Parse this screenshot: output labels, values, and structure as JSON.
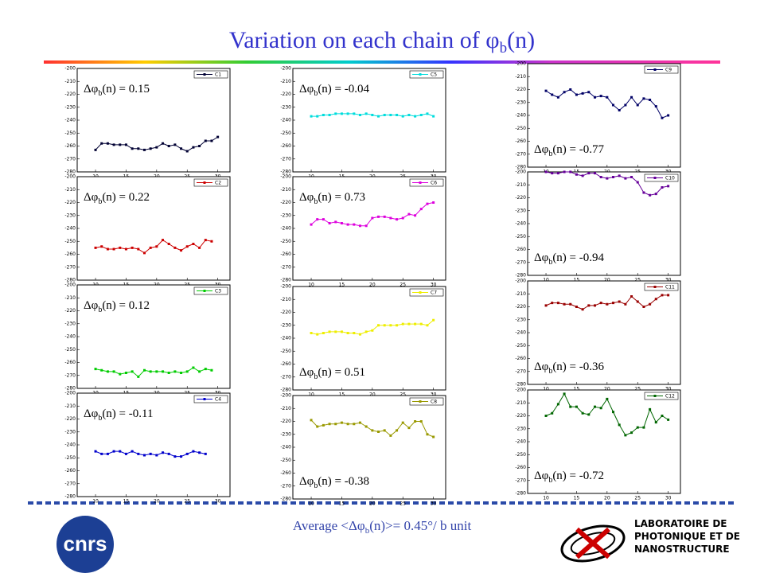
{
  "slide": {
    "title": [
      "Variation on each chain of φ",
      "b",
      "(n)"
    ],
    "footer": [
      "Average <Δφ",
      "b",
      "(n)>= 0.45°/ b unit"
    ],
    "logo": "cnrs",
    "lab": [
      "LABORATOIRE DE",
      "PHOTONIQUE ET DE",
      "NANOSTRUCTURE"
    ]
  },
  "chart_data": [
    {
      "type": "line",
      "annotation": [
        "Δφ",
        "b",
        "(n) = 0.15"
      ],
      "x": [
        10,
        11,
        12,
        13,
        14,
        15,
        16,
        17,
        18,
        19,
        20,
        21,
        22,
        23,
        24,
        25,
        26,
        27,
        28,
        29,
        30
      ],
      "series": [
        {
          "name": "C1",
          "color": "#000033",
          "values": [
            -263,
            -258,
            -258,
            -259,
            -259,
            -259,
            -262,
            -262,
            -263,
            -262,
            -261,
            -258,
            -260,
            -259,
            -262,
            -264,
            -261,
            -260,
            -256,
            -256,
            -253
          ]
        }
      ],
      "xlim": [
        7,
        32
      ],
      "xticks": [
        10,
        15,
        20,
        25,
        30
      ],
      "ylim": [
        -280,
        -200
      ],
      "yticks": [
        -200,
        -210,
        -220,
        -230,
        -240,
        -250,
        -260,
        -270,
        -280
      ]
    },
    {
      "type": "line",
      "annotation": [
        "Δφ",
        "b",
        "(n) = 0.22"
      ],
      "x": [
        10,
        11,
        12,
        13,
        14,
        15,
        16,
        17,
        18,
        19,
        20,
        21,
        22,
        23,
        24,
        25,
        26,
        27,
        28,
        29
      ],
      "series": [
        {
          "name": "C2",
          "color": "#cc0000",
          "values": [
            -255,
            -254,
            -256,
            -256,
            -255,
            -256,
            -255,
            -256,
            -259,
            -255,
            -254,
            -249,
            -252,
            -255,
            -257,
            -254,
            -252,
            -255,
            -249,
            -250
          ]
        }
      ],
      "xlim": [
        7,
        32
      ],
      "xticks": [
        10,
        15,
        20,
        25,
        30
      ],
      "ylim": [
        -280,
        -200
      ],
      "yticks": [
        -200,
        -210,
        -220,
        -230,
        -240,
        -250,
        -260,
        -270,
        -280
      ]
    },
    {
      "type": "line",
      "annotation": [
        "Δφ",
        "b",
        "(n) = 0.12"
      ],
      "x": [
        10,
        11,
        12,
        13,
        14,
        15,
        16,
        17,
        18,
        19,
        20,
        21,
        22,
        23,
        24,
        25,
        26,
        27,
        28,
        29
      ],
      "series": [
        {
          "name": "C3",
          "color": "#00cc00",
          "values": [
            -265,
            -266,
            -267,
            -267,
            -269,
            -268,
            -267,
            -271,
            -266,
            -267,
            -267,
            -267,
            -268,
            -267,
            -268,
            -267,
            -264,
            -267,
            -265,
            -266
          ]
        }
      ],
      "xlim": [
        7,
        32
      ],
      "xticks": [
        10,
        15,
        20,
        25,
        30
      ],
      "ylim": [
        -280,
        -200
      ],
      "yticks": [
        -200,
        -210,
        -220,
        -230,
        -240,
        -250,
        -260,
        -270,
        -280
      ]
    },
    {
      "type": "line",
      "annotation": [
        "Δφ",
        "b",
        "(n) = -0.11"
      ],
      "x": [
        10,
        11,
        12,
        13,
        14,
        15,
        16,
        17,
        18,
        19,
        20,
        21,
        22,
        23,
        24,
        25,
        26,
        27,
        28
      ],
      "series": [
        {
          "name": "C4",
          "color": "#0000cc",
          "values": [
            -245,
            -247,
            -247,
            -245,
            -245,
            -247,
            -245,
            -247,
            -248,
            -247,
            -248,
            -246,
            -247,
            -249,
            -249,
            -247,
            -245,
            -246,
            -247
          ]
        }
      ],
      "xlim": [
        7,
        32
      ],
      "xticks": [
        10,
        15,
        20,
        25,
        30
      ],
      "ylim": [
        -280,
        -200
      ],
      "yticks": [
        -200,
        -210,
        -220,
        -230,
        -240,
        -250,
        -260,
        -270,
        -280
      ]
    },
    {
      "type": "line",
      "annotation": [
        "Δφ",
        "b",
        "(n) = -0.04"
      ],
      "x": [
        10,
        11,
        12,
        13,
        14,
        15,
        16,
        17,
        18,
        19,
        20,
        21,
        22,
        23,
        24,
        25,
        26,
        27,
        28,
        29,
        30
      ],
      "series": [
        {
          "name": "C5",
          "color": "#00dddd",
          "values": [
            -237,
            -237,
            -236,
            -236,
            -235,
            -235,
            -235,
            -235,
            -236,
            -235,
            -236,
            -237,
            -236,
            -236,
            -236,
            -237,
            -236,
            -237,
            -236,
            -235,
            -237
          ]
        }
      ],
      "xlim": [
        7,
        32
      ],
      "xticks": [
        10,
        15,
        20,
        25,
        30
      ],
      "ylim": [
        -280,
        -200
      ],
      "yticks": [
        -200,
        -210,
        -220,
        -230,
        -240,
        -250,
        -260,
        -270,
        -280
      ]
    },
    {
      "type": "line",
      "annotation": [
        "Δφ",
        "b",
        "(n) = 0.73"
      ],
      "x": [
        10,
        11,
        12,
        13,
        14,
        15,
        16,
        17,
        18,
        19,
        20,
        21,
        22,
        23,
        24,
        25,
        26,
        27,
        28,
        29,
        30
      ],
      "series": [
        {
          "name": "C6",
          "color": "#dd00dd",
          "values": [
            -237,
            -233,
            -233,
            -236,
            -235,
            -236,
            -237,
            -237,
            -238,
            -238,
            -232,
            -231,
            -231,
            -232,
            -233,
            -232,
            -229,
            -230,
            -225,
            -221,
            -220
          ]
        }
      ],
      "xlim": [
        7,
        32
      ],
      "xticks": [
        10,
        15,
        20,
        25,
        30
      ],
      "ylim": [
        -280,
        -200
      ],
      "yticks": [
        -200,
        -210,
        -220,
        -230,
        -240,
        -250,
        -260,
        -270,
        -280
      ]
    },
    {
      "type": "line",
      "annotation": [
        "Δφ",
        "b",
        "(n) = 0.51"
      ],
      "x": [
        10,
        11,
        12,
        13,
        14,
        15,
        16,
        17,
        18,
        19,
        20,
        21,
        22,
        23,
        24,
        25,
        26,
        27,
        28,
        29,
        30
      ],
      "series": [
        {
          "name": "C7",
          "color": "#eeee00",
          "values": [
            -236,
            -237,
            -236,
            -235,
            -235,
            -235,
            -236,
            -236,
            -237,
            -235,
            -234,
            -230,
            -230,
            -230,
            -230,
            -229,
            -229,
            -229,
            -229,
            -230,
            -226
          ]
        }
      ],
      "xlim": [
        7,
        32
      ],
      "xticks": [
        10,
        15,
        20,
        25,
        30
      ],
      "ylim": [
        -280,
        -200
      ],
      "yticks": [
        -200,
        -210,
        -220,
        -230,
        -240,
        -250,
        -260,
        -270,
        -280
      ]
    },
    {
      "type": "line",
      "annotation": [
        "Δφ",
        "b",
        "(n) = -0.38"
      ],
      "x": [
        10,
        11,
        12,
        13,
        14,
        15,
        16,
        17,
        18,
        19,
        20,
        21,
        22,
        23,
        24,
        25,
        26,
        27,
        28,
        29,
        30
      ],
      "series": [
        {
          "name": "C8",
          "color": "#999900",
          "values": [
            -219,
            -224,
            -223,
            -222,
            -222,
            -221,
            -222,
            -222,
            -221,
            -224,
            -227,
            -228,
            -227,
            -231,
            -227,
            -221,
            -225,
            -220,
            -220,
            -230,
            -232
          ]
        }
      ],
      "xlim": [
        7,
        32
      ],
      "xticks": [
        10,
        15,
        20,
        25,
        30
      ],
      "ylim": [
        -280,
        -200
      ],
      "yticks": [
        -200,
        -210,
        -220,
        -230,
        -240,
        -250,
        -260,
        -270,
        -280
      ]
    },
    {
      "type": "line",
      "annotation": [
        "Δφ",
        "b",
        "(n) = -0.77"
      ],
      "x": [
        10,
        11,
        12,
        13,
        14,
        15,
        16,
        17,
        18,
        19,
        20,
        21,
        22,
        23,
        24,
        25,
        26,
        27,
        28,
        29,
        30
      ],
      "series": [
        {
          "name": "C9",
          "color": "#000066",
          "values": [
            -221,
            -224,
            -226,
            -222,
            -220,
            -224,
            -223,
            -222,
            -226,
            -225,
            -226,
            -232,
            -236,
            -232,
            -226,
            -232,
            -227,
            -228,
            -233,
            -242,
            -240
          ]
        }
      ],
      "xlim": [
        7,
        32
      ],
      "xticks": [
        10,
        15,
        20,
        25,
        30
      ],
      "ylim": [
        -280,
        -200
      ],
      "yticks": [
        -200,
        -210,
        -220,
        -230,
        -240,
        -250,
        -260,
        -270,
        -280
      ]
    },
    {
      "type": "line",
      "annotation": [
        "Δφ",
        "b",
        "(n) = -0.94"
      ],
      "x": [
        10,
        11,
        12,
        13,
        14,
        15,
        16,
        17,
        18,
        19,
        20,
        21,
        22,
        23,
        24,
        25,
        26,
        27,
        28,
        29,
        30
      ],
      "series": [
        {
          "name": "C10",
          "color": "#660099",
          "values": [
            -200,
            -201,
            -201,
            -200,
            -200,
            -202,
            -203,
            -201,
            -201,
            -204,
            -205,
            -204,
            -203,
            -205,
            -204,
            -208,
            -216,
            -218,
            -217,
            -212,
            -211
          ]
        }
      ],
      "xlim": [
        7,
        32
      ],
      "xticks": [
        10,
        15,
        20,
        25,
        30
      ],
      "ylim": [
        -280,
        -200
      ],
      "yticks": [
        -200,
        -210,
        -220,
        -230,
        -240,
        -250,
        -260,
        -270,
        -280
      ]
    },
    {
      "type": "line",
      "annotation": [
        "Δφ",
        "b",
        "(n) = -0.36"
      ],
      "x": [
        10,
        11,
        12,
        13,
        14,
        15,
        16,
        17,
        18,
        19,
        20,
        21,
        22,
        23,
        24,
        25,
        26,
        27,
        28,
        29,
        30
      ],
      "series": [
        {
          "name": "C11",
          "color": "#990000",
          "values": [
            -219,
            -217,
            -217,
            -218,
            -218,
            -220,
            -222,
            -219,
            -219,
            -217,
            -218,
            -217,
            -216,
            -218,
            -212,
            -216,
            -220,
            -218,
            -214,
            -211,
            -211
          ]
        }
      ],
      "xlim": [
        7,
        32
      ],
      "xticks": [
        10,
        15,
        20,
        25,
        30
      ],
      "ylim": [
        -280,
        -200
      ],
      "yticks": [
        -200,
        -210,
        -220,
        -230,
        -240,
        -250,
        -260,
        -270,
        -280
      ]
    },
    {
      "type": "line",
      "annotation": [
        "Δφ",
        "b",
        "(n) = -0.72"
      ],
      "x": [
        10,
        11,
        12,
        13,
        14,
        15,
        16,
        17,
        18,
        19,
        20,
        21,
        22,
        23,
        24,
        25,
        26,
        27,
        28,
        29,
        30
      ],
      "series": [
        {
          "name": "C12",
          "color": "#006600",
          "values": [
            -220,
            -218,
            -211,
            -203,
            -213,
            -213,
            -218,
            -219,
            -213,
            -214,
            -207,
            -217,
            -227,
            -235,
            -233,
            -229,
            -229,
            -215,
            -225,
            -220,
            -223
          ]
        }
      ],
      "xlim": [
        7,
        32
      ],
      "xticks": [
        10,
        15,
        20,
        25,
        30
      ],
      "ylim": [
        -280,
        -200
      ],
      "yticks": [
        -200,
        -210,
        -220,
        -230,
        -240,
        -250,
        -260,
        -270,
        -280
      ]
    }
  ]
}
